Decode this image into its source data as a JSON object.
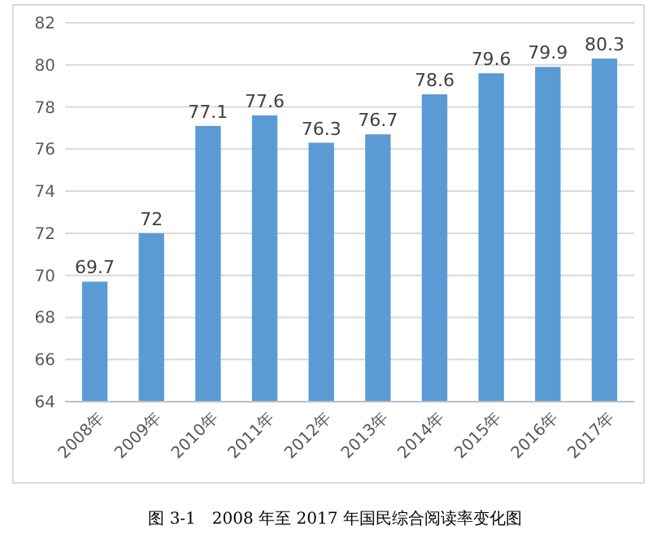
{
  "chart_data": {
    "type": "bar",
    "title": "图 3-1　2008 年至 2017 年国民综合阅读率变化图",
    "categories": [
      "2008年",
      "2009年",
      "2010年",
      "2011年",
      "2012年",
      "2013年",
      "2014年",
      "2015年",
      "2016年",
      "2017年"
    ],
    "values": [
      69.7,
      72,
      77.1,
      77.6,
      76.3,
      76.7,
      78.6,
      79.6,
      79.9,
      80.3
    ],
    "color": "#5b9bd5",
    "ylim": [
      64,
      82
    ],
    "yticks": [
      64,
      66,
      68,
      70,
      72,
      74,
      76,
      78,
      80,
      82
    ],
    "grid": "y",
    "data_labels": true
  }
}
